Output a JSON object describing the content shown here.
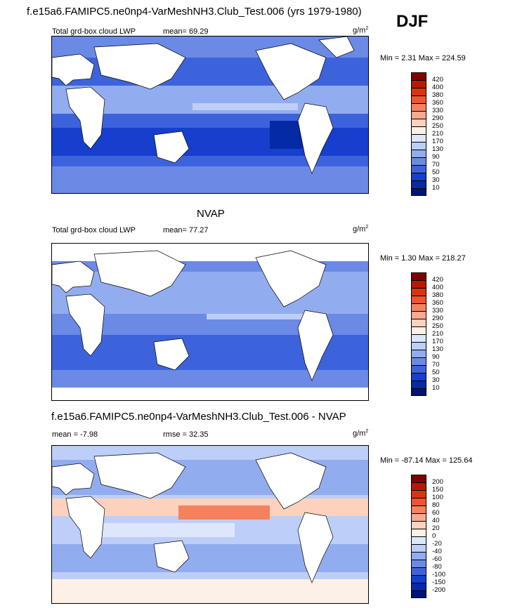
{
  "header": {
    "title": "f.e15a6.FAMIPC5.ne0np4-VarMeshNH3.Club_Test.006 (yrs 1979-1980)",
    "season": "DJF"
  },
  "panels": [
    {
      "title": "",
      "left_label": "Total grd-box cloud LWP",
      "mean_text": "mean=  69.29",
      "units": "g/m",
      "units_exp": "2",
      "minmax": "Min =   2.31 Max = 224.59"
    },
    {
      "title": "NVAP",
      "left_label": "Total grd-box cloud LWP",
      "mean_text": "mean=  77.27",
      "units": "g/m",
      "units_exp": "2",
      "minmax": "Min =   1.30 Max = 218.27"
    },
    {
      "title": "f.e15a6.FAMIPC5.ne0np4-VarMeshNH3.Club_Test.006 - NVAP",
      "left_label": "mean =  -7.98",
      "mean_text": "rmse =  32.35",
      "units": "g/m",
      "units_exp": "2",
      "minmax": "Min = -87.14 Max = 125.64"
    }
  ],
  "chart_data": [
    {
      "type": "heatmap",
      "name": "model",
      "colorbar": {
        "levels": [
          "420",
          "400",
          "380",
          "360",
          "330",
          "290",
          "250",
          "210",
          "170",
          "130",
          "90",
          "70",
          "50",
          "30",
          "10"
        ],
        "colors": [
          "#800000",
          "#b51a00",
          "#d8350f",
          "#ed5533",
          "#f5815f",
          "#f9a98d",
          "#fcd2bf",
          "#fdf0e6",
          "#dde6fb",
          "#bdcef8",
          "#92acf0",
          "#6a8ae6",
          "#3d63dc",
          "#163fce",
          "#052aa6",
          "#00137a"
        ]
      }
    },
    {
      "type": "heatmap",
      "name": "obs",
      "colorbar": {
        "levels": [
          "420",
          "400",
          "380",
          "360",
          "330",
          "290",
          "250",
          "210",
          "170",
          "130",
          "90",
          "70",
          "50",
          "30",
          "10"
        ],
        "colors": [
          "#800000",
          "#b51a00",
          "#d8350f",
          "#ed5533",
          "#f5815f",
          "#f9a98d",
          "#fcd2bf",
          "#fdf0e6",
          "#dde6fb",
          "#bdcef8",
          "#92acf0",
          "#6a8ae6",
          "#3d63dc",
          "#163fce",
          "#052aa6",
          "#00137a"
        ]
      }
    },
    {
      "type": "heatmap",
      "name": "diff",
      "colorbar": {
        "levels": [
          "200",
          "150",
          "100",
          "80",
          "60",
          "40",
          "20",
          "0",
          "-20",
          "-40",
          "-60",
          "-80",
          "-100",
          "-150",
          "-200"
        ],
        "colors": [
          "#800000",
          "#b51a00",
          "#d8350f",
          "#ed5533",
          "#f5815f",
          "#f9a98d",
          "#fcd2bf",
          "#fdf0e6",
          "#dde6fb",
          "#bdcef8",
          "#92acf0",
          "#6a8ae6",
          "#3d63dc",
          "#163fce",
          "#052aa6",
          "#00137a"
        ]
      }
    }
  ]
}
